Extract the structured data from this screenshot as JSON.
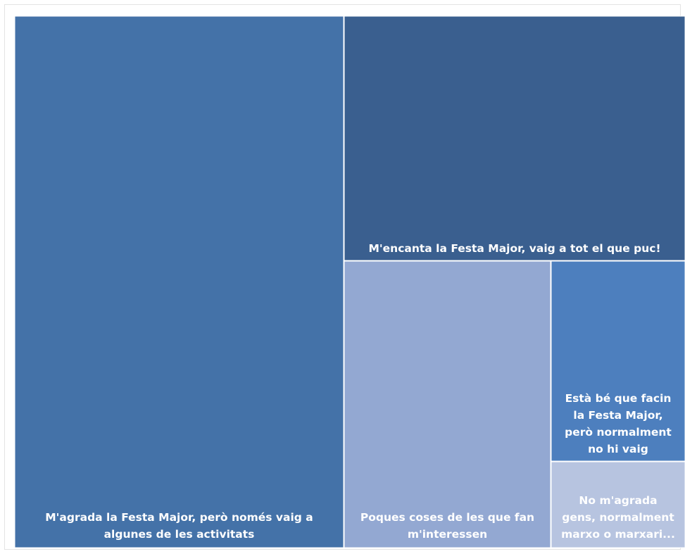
{
  "chart_data": {
    "type": "treemap",
    "title": "",
    "items": [
      {
        "label": "M'agrada la Festa Major, però només vaig a algunes de les activitats",
        "lines": [
          "M'agrada la Festa Major, però només vaig a",
          "algunes de les activitats"
        ],
        "color": "#4472a8"
      },
      {
        "label": "M'encanta la Festa Major, vaig a tot el que puc!",
        "lines": [
          "M'encanta la Festa Major, vaig a tot el que puc!"
        ],
        "color": "#3a5f8f"
      },
      {
        "label": "Poques coses de les que fan m'interessen",
        "lines": [
          "Poques coses de les que fan",
          "m'interessen"
        ],
        "color": "#93a8d2"
      },
      {
        "label": "Està bé que facin la Festa Major, però normalment no hi vaig",
        "lines": [
          "Està bé que facin",
          "la Festa Major,",
          "però normalment",
          "no hi vaig"
        ],
        "color": "#4d7fbe"
      },
      {
        "label": "No m'agrada gens, normalment marxo o marxari...",
        "lines": [
          "No m'agrada",
          "gens, normalment",
          "marxo o marxari..."
        ],
        "color": "#b7c4e0"
      }
    ]
  }
}
